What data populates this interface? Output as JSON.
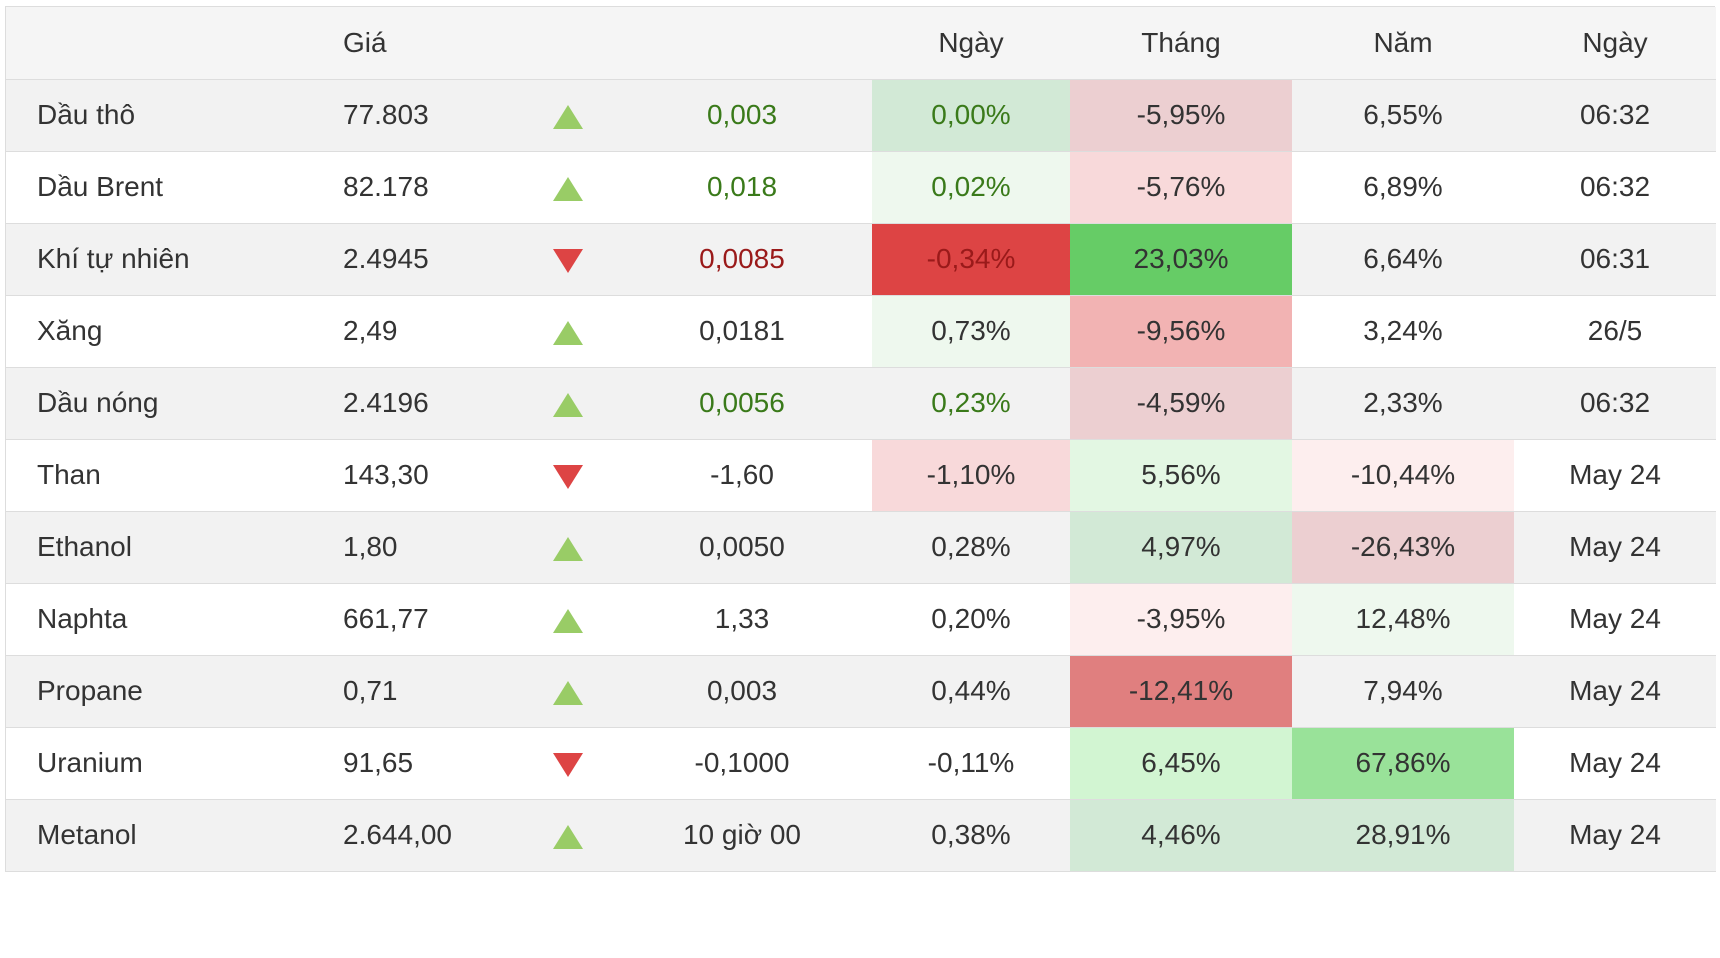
{
  "header": {
    "name": "",
    "price": "Giá",
    "arrow": "",
    "change": "",
    "day": "Ngày",
    "month": "Tháng",
    "year": "Năm",
    "date": "Ngày"
  },
  "rows": [
    {
      "name": "Dầu thô",
      "price": "77.803",
      "dir": "up",
      "change": "0,003",
      "change_color": "green",
      "day": "0,00%",
      "day_bg": "#d2e9d6",
      "day_color": "green",
      "month": "-5,95%",
      "month_bg": "#eccfd1",
      "year": "6,55%",
      "year_bg": "",
      "date": "06:32"
    },
    {
      "name": "Dầu Brent",
      "price": "82.178",
      "dir": "up",
      "change": "0,018",
      "change_color": "green",
      "day": "0,02%",
      "day_bg": "#eef8ee",
      "day_color": "green",
      "month": "-5,76%",
      "month_bg": "#f8d9da",
      "year": "6,89%",
      "year_bg": "",
      "date": "06:32"
    },
    {
      "name": "Khí tự nhiên",
      "price": "2.4945",
      "dir": "down",
      "change": "0,0085",
      "change_color": "red",
      "day": "-0,34%",
      "day_bg": "#dd4444",
      "day_color": "red",
      "month": "23,03%",
      "month_bg": "#66cc66",
      "year": "6,64%",
      "year_bg": "",
      "date": "06:31"
    },
    {
      "name": "Xăng",
      "price": "2,49",
      "dir": "up",
      "change": "0,0181",
      "change_color": "",
      "day": "0,73%",
      "day_bg": "#eef8ee",
      "day_color": "",
      "month": "-9,56%",
      "month_bg": "#f2b3b3",
      "year": "3,24%",
      "year_bg": "",
      "date": "26/5"
    },
    {
      "name": "Dầu nóng",
      "price": "2.4196",
      "dir": "up",
      "change": "0,0056",
      "change_color": "green",
      "day": "0,23%",
      "day_bg": "",
      "day_color": "green",
      "month": "-4,59%",
      "month_bg": "#eccfd1",
      "year": "2,33%",
      "year_bg": "",
      "date": "06:32"
    },
    {
      "name": "Than",
      "price": "143,30",
      "dir": "down",
      "change": "-1,60",
      "change_color": "",
      "day": "-1,10%",
      "day_bg": "#f8d9da",
      "day_color": "",
      "month": "5,56%",
      "month_bg": "#e3f7e3",
      "year": "-10,44%",
      "year_bg": "#fdeeee",
      "date": "May 24"
    },
    {
      "name": "Ethanol",
      "price": "1,80",
      "dir": "up",
      "change": "0,0050",
      "change_color": "",
      "day": "0,28%",
      "day_bg": "",
      "day_color": "",
      "month": "4,97%",
      "month_bg": "#d2e9d6",
      "year": "-26,43%",
      "year_bg": "#eccfd1",
      "date": "May 24"
    },
    {
      "name": "Naphta",
      "price": "661,77",
      "dir": "up",
      "change": "1,33",
      "change_color": "",
      "day": "0,20%",
      "day_bg": "",
      "day_color": "",
      "month": "-3,95%",
      "month_bg": "#fdeeee",
      "year": "12,48%",
      "year_bg": "#eef8ee",
      "date": "May 24"
    },
    {
      "name": "Propane",
      "price": "0,71",
      "dir": "up",
      "change": "0,003",
      "change_color": "",
      "day": "0,44%",
      "day_bg": "",
      "day_color": "",
      "month": "-12,41%",
      "month_bg": "#e07f7f",
      "year": "7,94%",
      "year_bg": "",
      "date": "May 24"
    },
    {
      "name": "Uranium",
      "price": "91,65",
      "dir": "down",
      "change": "-0,1000",
      "change_color": "",
      "day": "-0,11%",
      "day_bg": "",
      "day_color": "",
      "month": "6,45%",
      "month_bg": "#d2f5d2",
      "year": "67,86%",
      "year_bg": "#99e299",
      "date": "May 24"
    },
    {
      "name": "Metanol",
      "price": "2.644,00",
      "dir": "up",
      "change": "10 giờ 00",
      "change_color": "",
      "day": "0,38%",
      "day_bg": "",
      "day_color": "",
      "month": "4,46%",
      "month_bg": "#d2e9d6",
      "year": "28,91%",
      "year_bg": "#d2e9d6",
      "date": "May 24"
    }
  ]
}
